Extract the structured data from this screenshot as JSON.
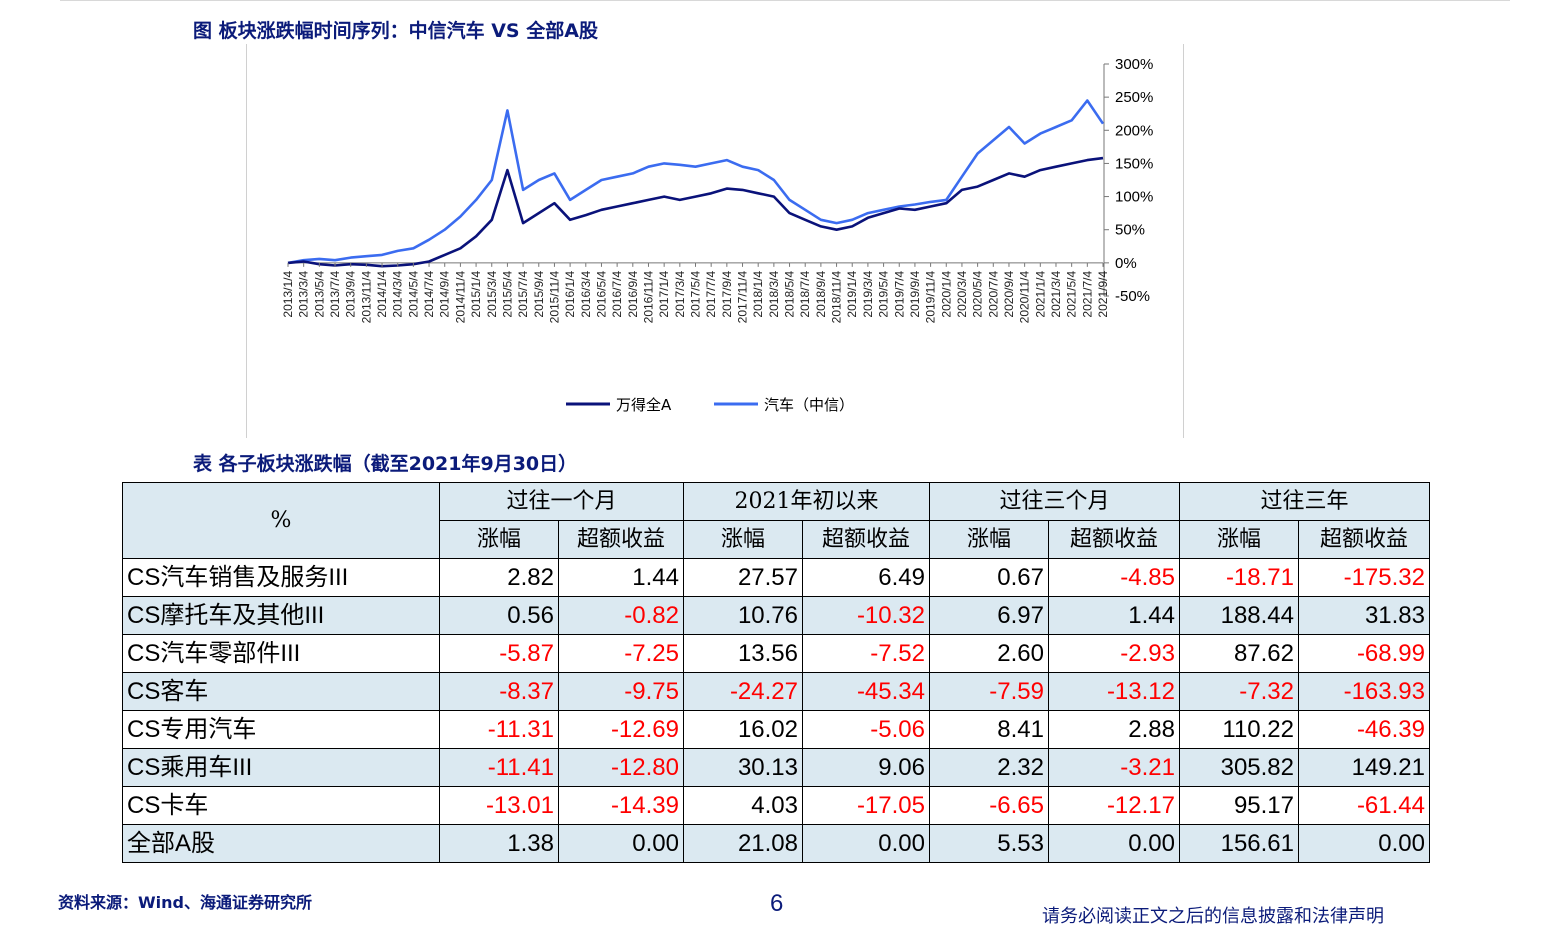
{
  "figure_title": "图 板块涨跌幅时间序列：中信汽车 VS 全部A股",
  "table_title": "表 各子板块涨跌幅（截至2021年9月30日）",
  "chart_data": {
    "type": "line",
    "x": [
      "2013/1/4",
      "2013/3/4",
      "2013/5/4",
      "2013/7/4",
      "2013/9/4",
      "2013/11/4",
      "2014/1/4",
      "2014/3/4",
      "2014/5/4",
      "2014/7/4",
      "2014/9/4",
      "2014/11/4",
      "2015/1/4",
      "2015/3/4",
      "2015/5/4",
      "2015/7/4",
      "2015/9/4",
      "2015/11/4",
      "2016/1/4",
      "2016/3/4",
      "2016/5/4",
      "2016/7/4",
      "2016/9/4",
      "2016/11/4",
      "2017/1/4",
      "2017/3/4",
      "2017/5/4",
      "2017/7/4",
      "2017/9/4",
      "2017/11/4",
      "2018/1/4",
      "2018/3/4",
      "2018/5/4",
      "2018/7/4",
      "2018/9/4",
      "2018/11/4",
      "2019/1/4",
      "2019/3/4",
      "2019/5/4",
      "2019/7/4",
      "2019/9/4",
      "2019/11/4",
      "2020/1/4",
      "2020/3/4",
      "2020/5/4",
      "2020/7/4",
      "2020/9/4",
      "2020/11/4",
      "2021/1/4",
      "2021/3/4",
      "2021/5/4",
      "2021/7/4",
      "2021/9/4"
    ],
    "series": [
      {
        "name": "万得全A",
        "color": "#0a127a",
        "values": [
          0,
          2,
          -2,
          -4,
          -2,
          -3,
          -5,
          -4,
          -2,
          2,
          12,
          22,
          40,
          65,
          140,
          60,
          75,
          90,
          65,
          72,
          80,
          85,
          90,
          95,
          100,
          95,
          100,
          105,
          112,
          110,
          105,
          100,
          75,
          65,
          55,
          50,
          55,
          68,
          75,
          82,
          80,
          85,
          90,
          110,
          115,
          125,
          135,
          130,
          140,
          145,
          150,
          155,
          158
        ]
      },
      {
        "name": "汽车（中信）",
        "color": "#3b6cf0",
        "values": [
          0,
          4,
          6,
          4,
          8,
          10,
          12,
          18,
          22,
          35,
          50,
          70,
          95,
          125,
          230,
          110,
          125,
          135,
          95,
          110,
          125,
          130,
          135,
          145,
          150,
          148,
          145,
          150,
          155,
          145,
          140,
          125,
          95,
          80,
          65,
          60,
          65,
          75,
          80,
          85,
          88,
          92,
          95,
          130,
          165,
          185,
          205,
          180,
          195,
          205,
          215,
          245,
          210
        ]
      }
    ],
    "ylim": [
      -50,
      300
    ],
    "y_ticks": [
      "-50%",
      "0%",
      "50%",
      "100%",
      "150%",
      "200%",
      "250%",
      "300%"
    ],
    "y_axis_side": "right",
    "grid": false,
    "legend_position": "bottom"
  },
  "table": {
    "corner_label": "%",
    "groups": [
      "过往一个月",
      "2021年初以来",
      "过往三个月",
      "过往三年"
    ],
    "sub_headers": [
      "涨幅",
      "超额收益",
      "涨幅",
      "超额收益",
      "涨幅",
      "超额收益",
      "涨幅",
      "超额收益"
    ],
    "rows": [
      {
        "label": "CS汽车销售及服务III",
        "values": [
          "2.82",
          "1.44",
          "27.57",
          "6.49",
          "0.67",
          "-4.85",
          "-18.71",
          "-175.32"
        ]
      },
      {
        "label": "CS摩托车及其他III",
        "values": [
          "0.56",
          "-0.82",
          "10.76",
          "-10.32",
          "6.97",
          "1.44",
          "188.44",
          "31.83"
        ]
      },
      {
        "label": "CS汽车零部件III",
        "values": [
          "-5.87",
          "-7.25",
          "13.56",
          "-7.52",
          "2.60",
          "-2.93",
          "87.62",
          "-68.99"
        ]
      },
      {
        "label": "CS客车",
        "values": [
          "-8.37",
          "-9.75",
          "-24.27",
          "-45.34",
          "-7.59",
          "-13.12",
          "-7.32",
          "-163.93"
        ]
      },
      {
        "label": "CS专用汽车",
        "values": [
          "-11.31",
          "-12.69",
          "16.02",
          "-5.06",
          "8.41",
          "2.88",
          "110.22",
          "-46.39"
        ]
      },
      {
        "label": "CS乘用车III",
        "values": [
          "-11.41",
          "-12.80",
          "30.13",
          "9.06",
          "2.32",
          "-3.21",
          "305.82",
          "149.21"
        ]
      },
      {
        "label": "CS卡车",
        "values": [
          "-13.01",
          "-14.39",
          "4.03",
          "-17.05",
          "-6.65",
          "-12.17",
          "95.17",
          "-61.44"
        ]
      },
      {
        "label": "全部A股",
        "values": [
          "1.38",
          "0.00",
          "21.08",
          "0.00",
          "5.53",
          "0.00",
          "156.61",
          "0.00"
        ]
      }
    ],
    "negative_color": "#ff0000"
  },
  "footer": {
    "source": "资料来源：Wind、海通证券研究所",
    "page_number": "6",
    "disclaimer": "请务必阅读正文之后的信息披露和法律声明"
  }
}
